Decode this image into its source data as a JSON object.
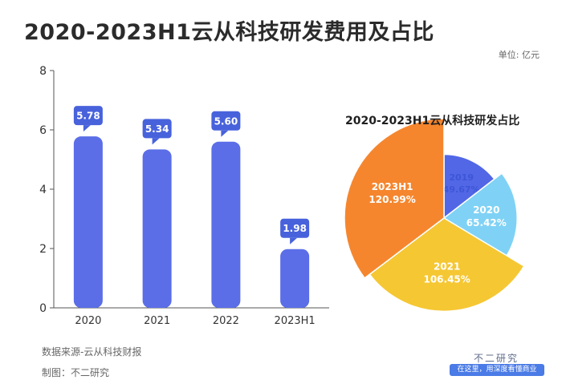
{
  "header": {
    "title": "2020-2023H1云从科技研发费用及占比",
    "unit": "单位: 亿元"
  },
  "footer": {
    "source": "数据来源-云从科技财报",
    "maker": "制图：不二研究",
    "brand": "不二研究",
    "slogan": "在这里，用深度看懂商业"
  },
  "colors": {
    "bar": "#5b6ee8",
    "label_bg": "#4862dc",
    "axis": "#555555",
    "pie": [
      "#5267e6",
      "#7fd2f5",
      "#f5c733",
      "#f5862e"
    ]
  },
  "chart_data": [
    {
      "type": "bar",
      "title": "",
      "categories": [
        "2020",
        "2021",
        "2022",
        "2023H1"
      ],
      "values": [
        5.78,
        5.34,
        5.6,
        1.98
      ],
      "value_labels": [
        "5.78",
        "5.34",
        "5.60",
        "1.98"
      ],
      "yticks": [
        "0",
        "2",
        "4",
        "6",
        "8"
      ],
      "ylim": [
        0,
        8
      ],
      "ylabel": "",
      "xlabel": ""
    },
    {
      "type": "pie",
      "title": "2020-2023H1云从科技研发占比",
      "labels": [
        "2019",
        "2020",
        "2021",
        "2023H1"
      ],
      "values": [
        49.67,
        65.42,
        106.45,
        120.99
      ],
      "value_labels": [
        "49.67%",
        "65.42%",
        "106.45%",
        "120.99%"
      ]
    }
  ]
}
